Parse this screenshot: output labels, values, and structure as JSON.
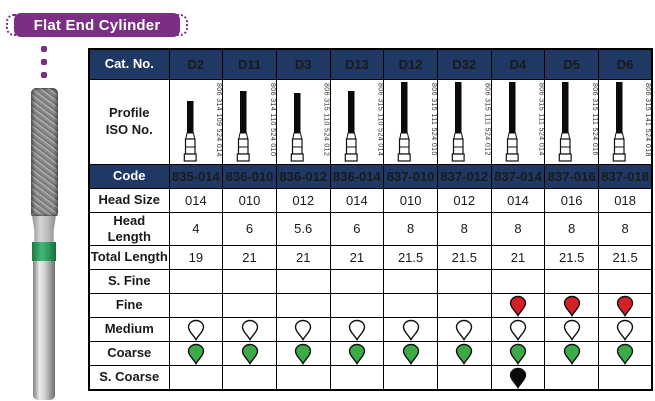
{
  "banner": {
    "title": "Flat End Cylinder"
  },
  "colors": {
    "banner_purple": "#7b2e83",
    "header_navy": "#1f3864",
    "table_border": "#000000"
  },
  "icons": {
    "bur_profile": "bur-profile-icon",
    "grit_drop": "diamond-drop-icon"
  },
  "drop_colors": {
    "white": "#ffffff",
    "red": "#d42027",
    "green": "#3caa47",
    "black": "#0a0a0a"
  },
  "table": {
    "row_labels": {
      "cat_no": "Cat. No.",
      "profile": "Profile\nISO No.",
      "code": "Code",
      "head_size": "Head Size",
      "head_length": "Head Length",
      "total_length": "Total Length",
      "s_fine": "S. Fine",
      "fine": "Fine",
      "medium": "Medium",
      "coarse": "Coarse",
      "s_coarse": "S. Coarse"
    },
    "columns": [
      {
        "cat_no": "D2",
        "iso_no": "806 314 109 524 014",
        "code": "835-014",
        "head_size": "014",
        "head_length": "4",
        "total_length": "19",
        "grit": {
          "s_fine": null,
          "fine": null,
          "medium": "white",
          "coarse": "green",
          "s_coarse": null
        }
      },
      {
        "cat_no": "D11",
        "iso_no": "806 314 110 524 010",
        "code": "836-010",
        "head_size": "010",
        "head_length": "6",
        "total_length": "21",
        "grit": {
          "s_fine": null,
          "fine": null,
          "medium": "white",
          "coarse": "green",
          "s_coarse": null
        }
      },
      {
        "cat_no": "D3",
        "iso_no": "806 315 110 524 012",
        "code": "836-012",
        "head_size": "012",
        "head_length": "5.6",
        "total_length": "21",
        "grit": {
          "s_fine": null,
          "fine": null,
          "medium": "white",
          "coarse": "green",
          "s_coarse": null
        }
      },
      {
        "cat_no": "D13",
        "iso_no": "806 315 110 524 014",
        "code": "836-014",
        "head_size": "014",
        "head_length": "6",
        "total_length": "21",
        "grit": {
          "s_fine": null,
          "fine": null,
          "medium": "white",
          "coarse": "green",
          "s_coarse": null
        }
      },
      {
        "cat_no": "D12",
        "iso_no": "806 315 111 524 010",
        "code": "837-010",
        "head_size": "010",
        "head_length": "8",
        "total_length": "21.5",
        "grit": {
          "s_fine": null,
          "fine": null,
          "medium": "white",
          "coarse": "green",
          "s_coarse": null
        }
      },
      {
        "cat_no": "D32",
        "iso_no": "806 315 111 524 012",
        "code": "837-012",
        "head_size": "012",
        "head_length": "8",
        "total_length": "21.5",
        "grit": {
          "s_fine": null,
          "fine": null,
          "medium": "white",
          "coarse": "green",
          "s_coarse": null
        }
      },
      {
        "cat_no": "D4",
        "iso_no": "806 315 111 524 014",
        "code": "837-014",
        "head_size": "014",
        "head_length": "8",
        "total_length": "21",
        "grit": {
          "s_fine": null,
          "fine": "red",
          "medium": "white",
          "coarse": "green",
          "s_coarse": "black"
        }
      },
      {
        "cat_no": "D5",
        "iso_no": "806 315 111 524 016",
        "code": "837-016",
        "head_size": "016",
        "head_length": "8",
        "total_length": "21.5",
        "grit": {
          "s_fine": null,
          "fine": "red",
          "medium": "white",
          "coarse": "green",
          "s_coarse": null
        }
      },
      {
        "cat_no": "D6",
        "iso_no": "806 315 141 524 018",
        "code": "837-018",
        "head_size": "018",
        "head_length": "8",
        "total_length": "21.5",
        "grit": {
          "s_fine": null,
          "fine": "red",
          "medium": "white",
          "coarse": "green",
          "s_coarse": null
        }
      }
    ]
  }
}
